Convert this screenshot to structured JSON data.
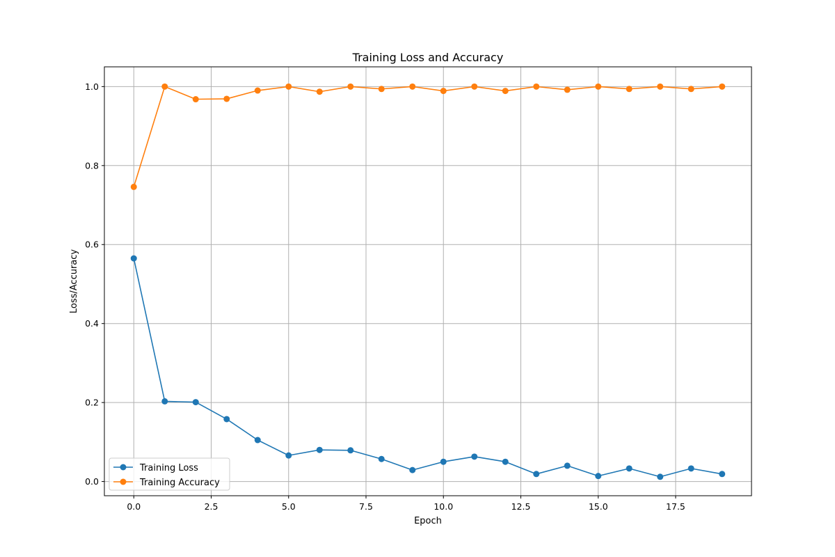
{
  "chart_data": {
    "type": "line",
    "title": "Training Loss and Accuracy",
    "xlabel": "Epoch",
    "ylabel": "Loss/Accuracy",
    "x": [
      0,
      1,
      2,
      3,
      4,
      5,
      6,
      7,
      8,
      9,
      10,
      11,
      12,
      13,
      14,
      15,
      16,
      17,
      18,
      19
    ],
    "xlim": [
      -0.95,
      19.95
    ],
    "ylim": [
      -0.036,
      1.05
    ],
    "xticks": [
      0,
      2.5,
      5,
      7.5,
      10,
      12.5,
      15,
      17.5
    ],
    "xtick_labels": [
      "0.0",
      "2.5",
      "5.0",
      "7.5",
      "10.0",
      "12.5",
      "15.0",
      "17.5"
    ],
    "yticks": [
      0,
      0.2,
      0.4,
      0.6,
      0.8,
      1.0
    ],
    "ytick_labels": [
      "0.0",
      "0.2",
      "0.4",
      "0.6",
      "0.8",
      "1.0"
    ],
    "grid": true,
    "legend_position": "lower-left",
    "series": [
      {
        "name": "Training Loss",
        "color": "#1f77b4",
        "marker": "circle",
        "values": [
          0.565,
          0.203,
          0.201,
          0.158,
          0.105,
          0.066,
          0.08,
          0.079,
          0.057,
          0.029,
          0.05,
          0.063,
          0.05,
          0.019,
          0.04,
          0.014,
          0.033,
          0.012,
          0.033,
          0.019
        ]
      },
      {
        "name": "Training Accuracy",
        "color": "#ff7f0e",
        "marker": "circle",
        "values": [
          0.746,
          1.0,
          0.968,
          0.969,
          0.99,
          1.0,
          0.987,
          1.0,
          0.994,
          1.0,
          0.989,
          1.0,
          0.989,
          1.0,
          0.992,
          1.0,
          0.994,
          1.0,
          0.994,
          1.0
        ]
      }
    ]
  }
}
